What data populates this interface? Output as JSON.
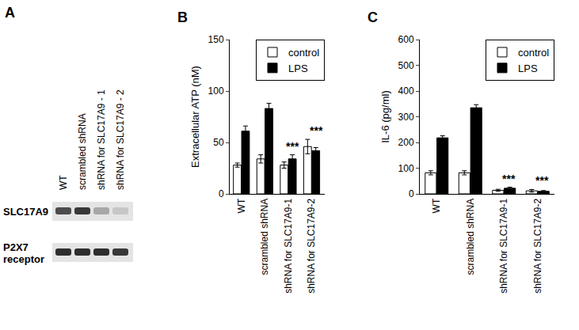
{
  "blot": {
    "title": "A",
    "lanes": [
      "WT",
      "scrambled shRNA",
      "shRNA for SLC17A9 - 1",
      "shRNA for SLC17A9 - 2"
    ],
    "bands": [
      {
        "label": [
          "SLC17A9"
        ],
        "intensity": [
          0.75,
          0.85,
          0.3,
          0.15
        ]
      },
      {
        "label": [
          "P2X7",
          "receptor"
        ],
        "intensity": [
          0.9,
          0.9,
          0.9,
          0.85
        ]
      }
    ]
  },
  "chart_data": [
    {
      "type": "bar",
      "title": "B",
      "y_label": "Extracellular ATP (nM)",
      "categories": [
        "WT",
        "scrambled shRNA",
        "shRNA for SLC17A9-1",
        "shRNA for SLC17A9-2"
      ],
      "series": [
        {
          "name": "control",
          "color": "#ffffff",
          "values": [
            28,
            34,
            28,
            46
          ],
          "errors": [
            2,
            4,
            3,
            7
          ]
        },
        {
          "name": "LPS",
          "color": "#000000",
          "values": [
            61,
            83,
            34,
            42
          ],
          "errors": [
            5,
            5,
            4,
            3
          ]
        }
      ],
      "ylim": [
        0,
        150
      ],
      "yticks": [
        0,
        50,
        100,
        150
      ],
      "grid": false,
      "legend": "upper right",
      "annotations": [
        {
          "text": "***",
          "category": "shRNA for SLC17A9-1"
        },
        {
          "text": "***",
          "category": "shRNA for SLC17A9-2"
        }
      ]
    },
    {
      "type": "bar",
      "title": "C",
      "y_label": "IL-6 (pg/ml)",
      "categories": [
        "WT",
        "scrambled shRNA",
        "shRNA for SLC17A9-1",
        "shRNA for SLC17A9-2"
      ],
      "series": [
        {
          "name": "control",
          "color": "#ffffff",
          "values": [
            82,
            82,
            14,
            12
          ],
          "errors": [
            8,
            8,
            4,
            5
          ]
        },
        {
          "name": "LPS",
          "color": "#000000",
          "values": [
            218,
            335,
            22,
            10
          ],
          "errors": [
            8,
            12,
            4,
            3
          ]
        }
      ],
      "ylim": [
        0,
        600
      ],
      "yticks": [
        0,
        100,
        200,
        300,
        400,
        500,
        600
      ],
      "grid": false,
      "legend": "upper right",
      "annotations": [
        {
          "text": "***",
          "category": "shRNA for SLC17A9-1"
        },
        {
          "text": "***",
          "category": "shRNA for SLC17A9-2"
        }
      ]
    }
  ]
}
